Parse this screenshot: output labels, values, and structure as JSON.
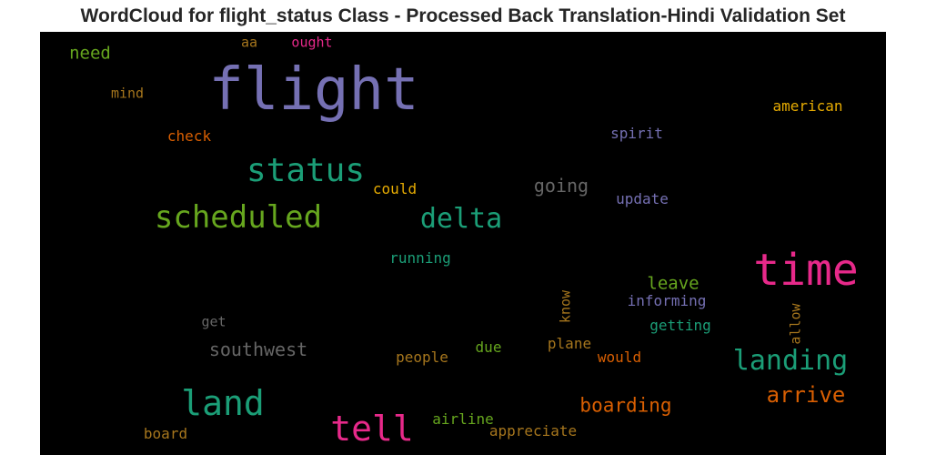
{
  "title": "WordCloud for flight_status Class - Processed Back Translation-Hindi Validation Set",
  "words": [
    {
      "text": "flight",
      "color": "#7570b3"
    },
    {
      "text": "time",
      "color": "#e7298a"
    },
    {
      "text": "status",
      "color": "#1b9e77"
    },
    {
      "text": "scheduled",
      "color": "#66a61e"
    },
    {
      "text": "delta",
      "color": "#1b9e77"
    },
    {
      "text": "land",
      "color": "#1b9e77"
    },
    {
      "text": "tell",
      "color": "#e7298a"
    },
    {
      "text": "landing",
      "color": "#1b9e77"
    },
    {
      "text": "arrive",
      "color": "#d95f02"
    },
    {
      "text": "boarding",
      "color": "#d95f02"
    },
    {
      "text": "southwest",
      "color": "#666666"
    },
    {
      "text": "going",
      "color": "#666666"
    },
    {
      "text": "leave",
      "color": "#66a61e"
    },
    {
      "text": "need",
      "color": "#66a61e"
    },
    {
      "text": "american",
      "color": "#e6ab02"
    },
    {
      "text": "spirit",
      "color": "#7570b3"
    },
    {
      "text": "update",
      "color": "#7570b3"
    },
    {
      "text": "could",
      "color": "#e6ab02"
    },
    {
      "text": "check",
      "color": "#d95f02"
    },
    {
      "text": "mind",
      "color": "#a6761d"
    },
    {
      "text": "aa",
      "color": "#a6761d"
    },
    {
      "text": "ought",
      "color": "#e7298a"
    },
    {
      "text": "running",
      "color": "#1b9e77"
    },
    {
      "text": "informing",
      "color": "#7570b3"
    },
    {
      "text": "getting",
      "color": "#1b9e77"
    },
    {
      "text": "know",
      "color": "#a6761d"
    },
    {
      "text": "allow",
      "color": "#a6761d"
    },
    {
      "text": "get",
      "color": "#666666"
    },
    {
      "text": "people",
      "color": "#a6761d"
    },
    {
      "text": "due",
      "color": "#66a61e"
    },
    {
      "text": "plane",
      "color": "#a6761d"
    },
    {
      "text": "would",
      "color": "#d95f02"
    },
    {
      "text": "airline",
      "color": "#66a61e"
    },
    {
      "text": "appreciate",
      "color": "#a6761d"
    },
    {
      "text": "board",
      "color": "#a6761d"
    }
  ]
}
